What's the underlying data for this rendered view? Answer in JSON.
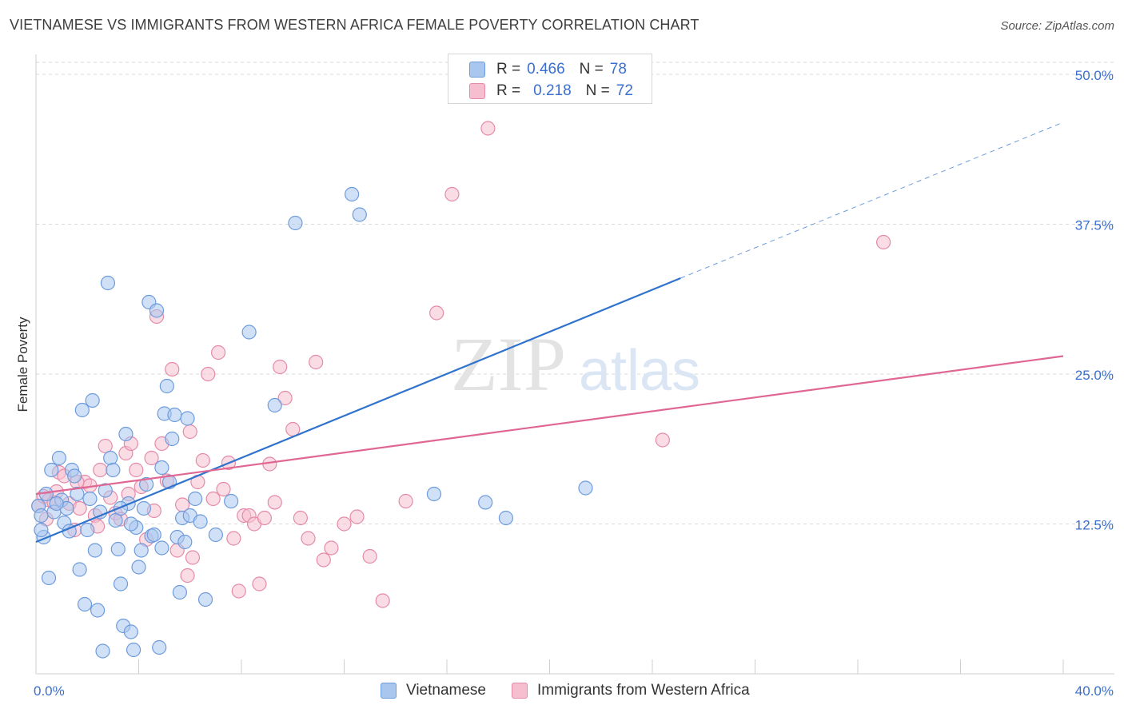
{
  "title": "VIETNAMESE VS IMMIGRANTS FROM WESTERN AFRICA FEMALE POVERTY CORRELATION CHART",
  "source": "Source: ZipAtlas.com",
  "watermark": {
    "zip": "ZIP",
    "atlas": "atlas"
  },
  "colors": {
    "blue_fill": "#a9c6ef",
    "blue_stroke": "#6d9bdc",
    "blue_line": "#2f73cc",
    "pink_fill": "#f6bfd0",
    "pink_stroke": "#e48aa8",
    "pink_line": "#e06793",
    "axis_label": "#3a6fcf",
    "grid": "#d9d9d9"
  },
  "legend_top": [
    {
      "r_label": "R =",
      "r_value": "0.466",
      "n_label": "N =",
      "n_value": "78"
    },
    {
      "r_label": "R =",
      "r_value": "0.218",
      "n_label": "N =",
      "n_value": "72"
    }
  ],
  "chart_data": {
    "type": "scatter",
    "title": "VIETNAMESE VS IMMIGRANTS FROM WESTERN AFRICA FEMALE POVERTY CORRELATION CHART",
    "xlabel": "",
    "ylabel": "Female Poverty",
    "xlim": [
      0,
      40
    ],
    "ylim": [
      0,
      51
    ],
    "x_tick_labels": [
      "0.0%",
      "40.0%"
    ],
    "y_ticks": [
      12.5,
      25.0,
      37.5,
      50.0
    ],
    "y_tick_labels": [
      "12.5%",
      "25.0%",
      "37.5%",
      "50.0%"
    ],
    "grid": true,
    "legend_position": "top-center",
    "series": [
      {
        "name": "Vietnamese",
        "color": "#6d9bdc",
        "r": 0.466,
        "n": 78,
        "trend": {
          "x": [
            0,
            25.1
          ],
          "y": [
            11.0,
            33.0
          ],
          "dashed_extension_to": [
            40,
            46.0
          ]
        },
        "x": [
          0.1,
          0.2,
          0.3,
          0.4,
          0.6,
          0.7,
          0.9,
          1.0,
          1.1,
          1.2,
          1.3,
          1.4,
          1.5,
          1.6,
          1.7,
          1.8,
          2.0,
          2.1,
          2.2,
          2.3,
          2.5,
          2.6,
          2.7,
          2.8,
          2.9,
          3.0,
          3.1,
          3.2,
          3.3,
          3.4,
          3.5,
          3.6,
          3.7,
          3.8,
          3.9,
          4.0,
          4.1,
          4.2,
          4.3,
          4.4,
          4.5,
          4.6,
          4.7,
          4.8,
          4.9,
          5.0,
          5.1,
          5.2,
          5.3,
          5.4,
          5.5,
          5.6,
          5.7,
          5.8,
          5.9,
          6.0,
          6.2,
          6.4,
          6.6,
          7.0,
          7.6,
          8.3,
          9.3,
          10.1,
          12.3,
          12.6,
          15.5,
          17.5,
          18.3,
          21.4,
          0.2,
          0.5,
          2.4,
          3.3,
          1.9,
          0.8,
          3.7,
          4.9
        ],
        "y": [
          14.0,
          13.2,
          11.4,
          15.0,
          17.0,
          13.5,
          18.0,
          14.5,
          12.6,
          13.8,
          11.9,
          17.0,
          16.5,
          15.0,
          8.7,
          22.0,
          12.0,
          14.6,
          22.8,
          10.3,
          13.5,
          1.9,
          15.3,
          32.6,
          18.0,
          17.0,
          12.8,
          10.4,
          7.5,
          4.0,
          20.0,
          14.2,
          3.5,
          2.0,
          12.2,
          8.9,
          10.3,
          13.8,
          15.8,
          31.0,
          11.5,
          11.6,
          30.3,
          2.2,
          10.5,
          21.7,
          24.0,
          16.0,
          19.6,
          21.6,
          11.4,
          6.8,
          13.0,
          11.0,
          21.3,
          13.2,
          14.6,
          12.7,
          6.2,
          11.6,
          14.4,
          28.5,
          22.4,
          37.6,
          40.0,
          38.3,
          15.0,
          14.3,
          13.0,
          15.5,
          12.0,
          8.0,
          5.3,
          13.8,
          5.8,
          14.2,
          12.5,
          17.2
        ]
      },
      {
        "name": "Immigrants from Western Africa",
        "color": "#e48aa8",
        "r": 0.218,
        "n": 72,
        "trend": {
          "x": [
            0,
            40
          ],
          "y": [
            15.0,
            26.5
          ]
        },
        "x": [
          0.1,
          0.3,
          0.5,
          0.7,
          0.9,
          1.1,
          1.3,
          1.5,
          1.7,
          1.9,
          2.1,
          2.3,
          2.5,
          2.7,
          2.9,
          3.1,
          3.3,
          3.5,
          3.7,
          3.9,
          4.1,
          4.3,
          4.5,
          4.7,
          4.9,
          5.1,
          5.3,
          5.5,
          5.7,
          5.9,
          6.1,
          6.3,
          6.5,
          6.7,
          6.9,
          7.1,
          7.3,
          7.5,
          7.7,
          7.9,
          8.1,
          8.3,
          8.5,
          8.7,
          8.9,
          9.1,
          9.3,
          9.5,
          9.7,
          10.0,
          10.3,
          10.6,
          10.9,
          11.2,
          11.5,
          12.0,
          12.5,
          13.0,
          13.5,
          14.4,
          15.6,
          16.2,
          17.6,
          24.4,
          33.0,
          0.4,
          0.8,
          1.6,
          2.4,
          3.6,
          4.6,
          6.0
        ],
        "y": [
          14.0,
          14.8,
          14.5,
          14.3,
          16.8,
          16.5,
          14.2,
          12.0,
          13.8,
          16.0,
          15.7,
          13.2,
          17.0,
          19.0,
          14.7,
          13.4,
          12.9,
          18.4,
          19.2,
          17.0,
          15.6,
          11.2,
          18.0,
          29.8,
          19.2,
          16.1,
          25.4,
          10.3,
          14.1,
          8.2,
          9.7,
          16.0,
          17.8,
          25.0,
          14.6,
          26.8,
          15.4,
          17.6,
          11.3,
          6.9,
          13.2,
          13.2,
          12.5,
          7.5,
          13.0,
          17.5,
          14.3,
          25.6,
          23.0,
          20.4,
          13.0,
          11.3,
          26.0,
          9.5,
          10.5,
          12.5,
          13.1,
          9.8,
          6.1,
          14.4,
          30.1,
          40.0,
          45.5,
          19.5,
          36.0,
          12.9,
          15.2,
          16.0,
          12.3,
          15.0,
          13.6,
          20.2
        ]
      }
    ]
  },
  "bottom_legend": [
    "Vietnamese",
    "Immigrants from Western Africa"
  ]
}
